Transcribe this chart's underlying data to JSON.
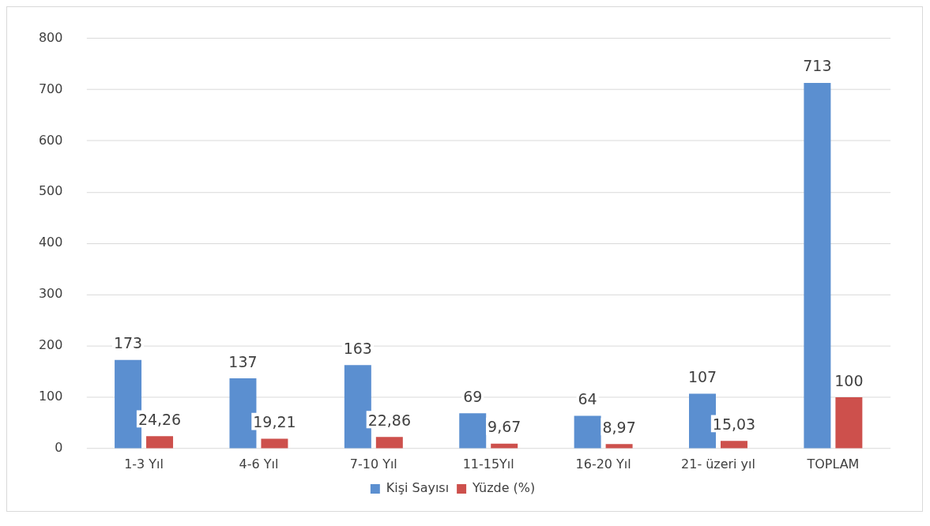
{
  "chart_data": {
    "type": "bar",
    "categories": [
      "1-3 Yıl",
      "4-6 Yıl",
      "7-10 Yıl",
      "11-15Yıl",
      "16-20 Yıl",
      "21- üzeri yıl",
      "TOPLAM"
    ],
    "series": [
      {
        "name": "Kişi Sayısı",
        "color": "#5b8fd0",
        "values": [
          173,
          137,
          163,
          69,
          64,
          107,
          713
        ],
        "value_labels": [
          "173",
          "137",
          "163",
          "69",
          "64",
          "107",
          "713"
        ]
      },
      {
        "name": "Yüzde (%)",
        "color": "#cd504c",
        "values": [
          24.26,
          19.21,
          22.86,
          9.67,
          8.97,
          15.03,
          100
        ],
        "value_labels": [
          "24,26",
          "19,21",
          "22,86",
          "9,67",
          "8,97",
          "15,03",
          "100"
        ]
      }
    ],
    "ylim": [
      0,
      800
    ],
    "yticks": [
      0,
      100,
      200,
      300,
      400,
      500,
      600,
      700,
      800
    ],
    "grid": "y",
    "legend": "bottom"
  }
}
